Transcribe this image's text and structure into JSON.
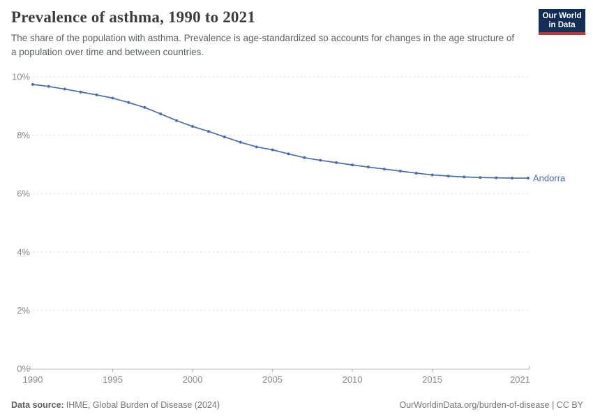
{
  "header": {
    "title": "Prevalence of asthma, 1990 to 2021",
    "subtitle": "The share of the population with asthma. Prevalence is age-standardized so accounts for changes in the age structure of a population over time and between countries.",
    "logo": {
      "line1": "Our World",
      "line2": "in Data"
    }
  },
  "footer": {
    "source_label": "Data source:",
    "source_text": "IHME, Global Burden of Disease (2024)",
    "link_text": "OurWorldinData.org/burden-of-disease | CC BY"
  },
  "colors": {
    "series_line": "#4c6ca8",
    "logo_background": "#132e54",
    "logo_underline": "#c0372f",
    "grid": "#d9d9d9",
    "axis": "#a5a5a5",
    "tick_label": "#8a8a8a",
    "title": "#3d3d3d",
    "subtitle": "#5b6266",
    "footer": "#757575"
  },
  "chart_data": {
    "type": "line",
    "title": "Prevalence of asthma, 1990 to 2021",
    "xlabel": "",
    "ylabel": "",
    "xlim": [
      1990,
      2021
    ],
    "ylim": [
      0,
      10
    ],
    "x_ticks": [
      1990,
      1995,
      2000,
      2005,
      2010,
      2015,
      2021
    ],
    "y_ticks": [
      0,
      2,
      4,
      6,
      8,
      10
    ],
    "y_tick_suffix": "%",
    "grid": true,
    "legend_position": "end-of-line",
    "series": [
      {
        "name": "Andorra",
        "color": "#4c6ca8",
        "x": [
          1990,
          1991,
          1992,
          1993,
          1994,
          1995,
          1996,
          1997,
          1998,
          1999,
          2000,
          2001,
          2002,
          2003,
          2004,
          2005,
          2006,
          2007,
          2008,
          2009,
          2010,
          2011,
          2012,
          2013,
          2014,
          2015,
          2016,
          2017,
          2018,
          2019,
          2020,
          2021
        ],
        "values": [
          9.74,
          9.67,
          9.58,
          9.48,
          9.38,
          9.27,
          9.12,
          8.95,
          8.73,
          8.5,
          8.3,
          8.13,
          7.94,
          7.76,
          7.6,
          7.5,
          7.36,
          7.23,
          7.14,
          7.06,
          6.98,
          6.91,
          6.84,
          6.77,
          6.7,
          6.64,
          6.6,
          6.57,
          6.55,
          6.54,
          6.53,
          6.53
        ]
      }
    ]
  }
}
